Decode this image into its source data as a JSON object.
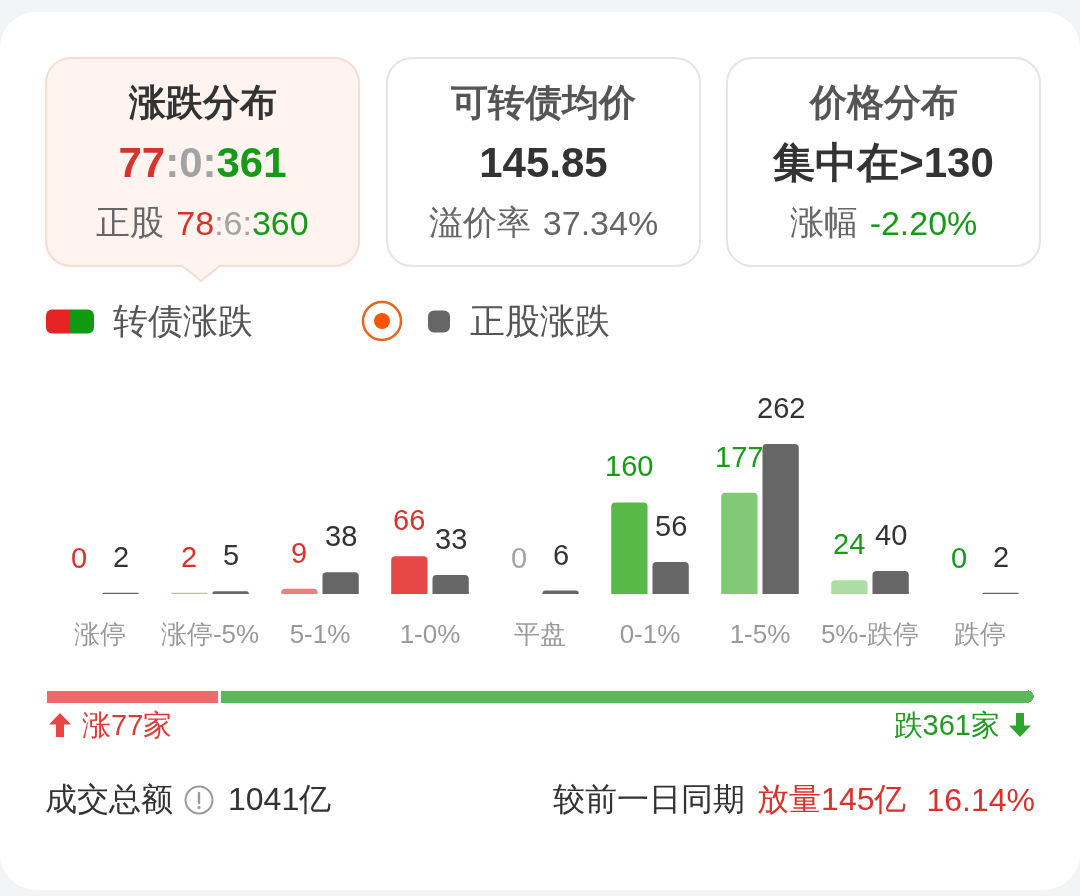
{
  "chart_data": [
    {
      "type": "other",
      "annotations": [
        "涨跌分布",
        "77:0:361",
        "正股",
        "78:6:360",
        "可转债均价",
        "145.85",
        "溢价率",
        "37.34%",
        "价格分布",
        "集中在>130",
        "涨幅",
        "-2.20%"
      ]
    },
    {
      "type": "bar",
      "categories": [
        "涨停",
        "涨停-5%",
        "5-1%",
        "1-0%",
        "平盘",
        "0-1%",
        "1-5%",
        "5%-跌停",
        "跌停"
      ],
      "series": [
        {
          "name": "转债涨跌",
          "colors": [
            "#f7d3d3",
            "#f0a8a8",
            "#ec7f7f",
            "#e64848",
            "#a3a3a3",
            "#58b848",
            "#82c975",
            "#acdda3",
            "#d5eed1"
          ],
          "values": [
            0,
            2,
            9,
            66,
            0,
            160,
            177,
            24,
            0
          ]
        },
        {
          "name": "正股涨跌",
          "color": "#666666",
          "values": [
            2,
            5,
            38,
            33,
            6,
            56,
            262,
            40,
            2
          ]
        }
      ],
      "data_labels": true,
      "legend": "top left",
      "tick_labels": "x"
    },
    {
      "type": "bar",
      "orientation": "horizontal",
      "stacked": true,
      "categories": [
        null
      ],
      "series": [
        {
          "color": "#f06868",
          "values": [
            77
          ],
          "value_labels": [
            "涨77家"
          ]
        },
        {
          "color": "#5cb85c",
          "values": [
            361
          ],
          "value_labels": [
            "跌361家"
          ]
        }
      ],
      "tick_labels": false
    },
    {
      "type": "other",
      "annotations": [
        "成交总额",
        "1041亿",
        "较前一日同期",
        "放量145亿",
        "16.14%"
      ]
    }
  ]
}
